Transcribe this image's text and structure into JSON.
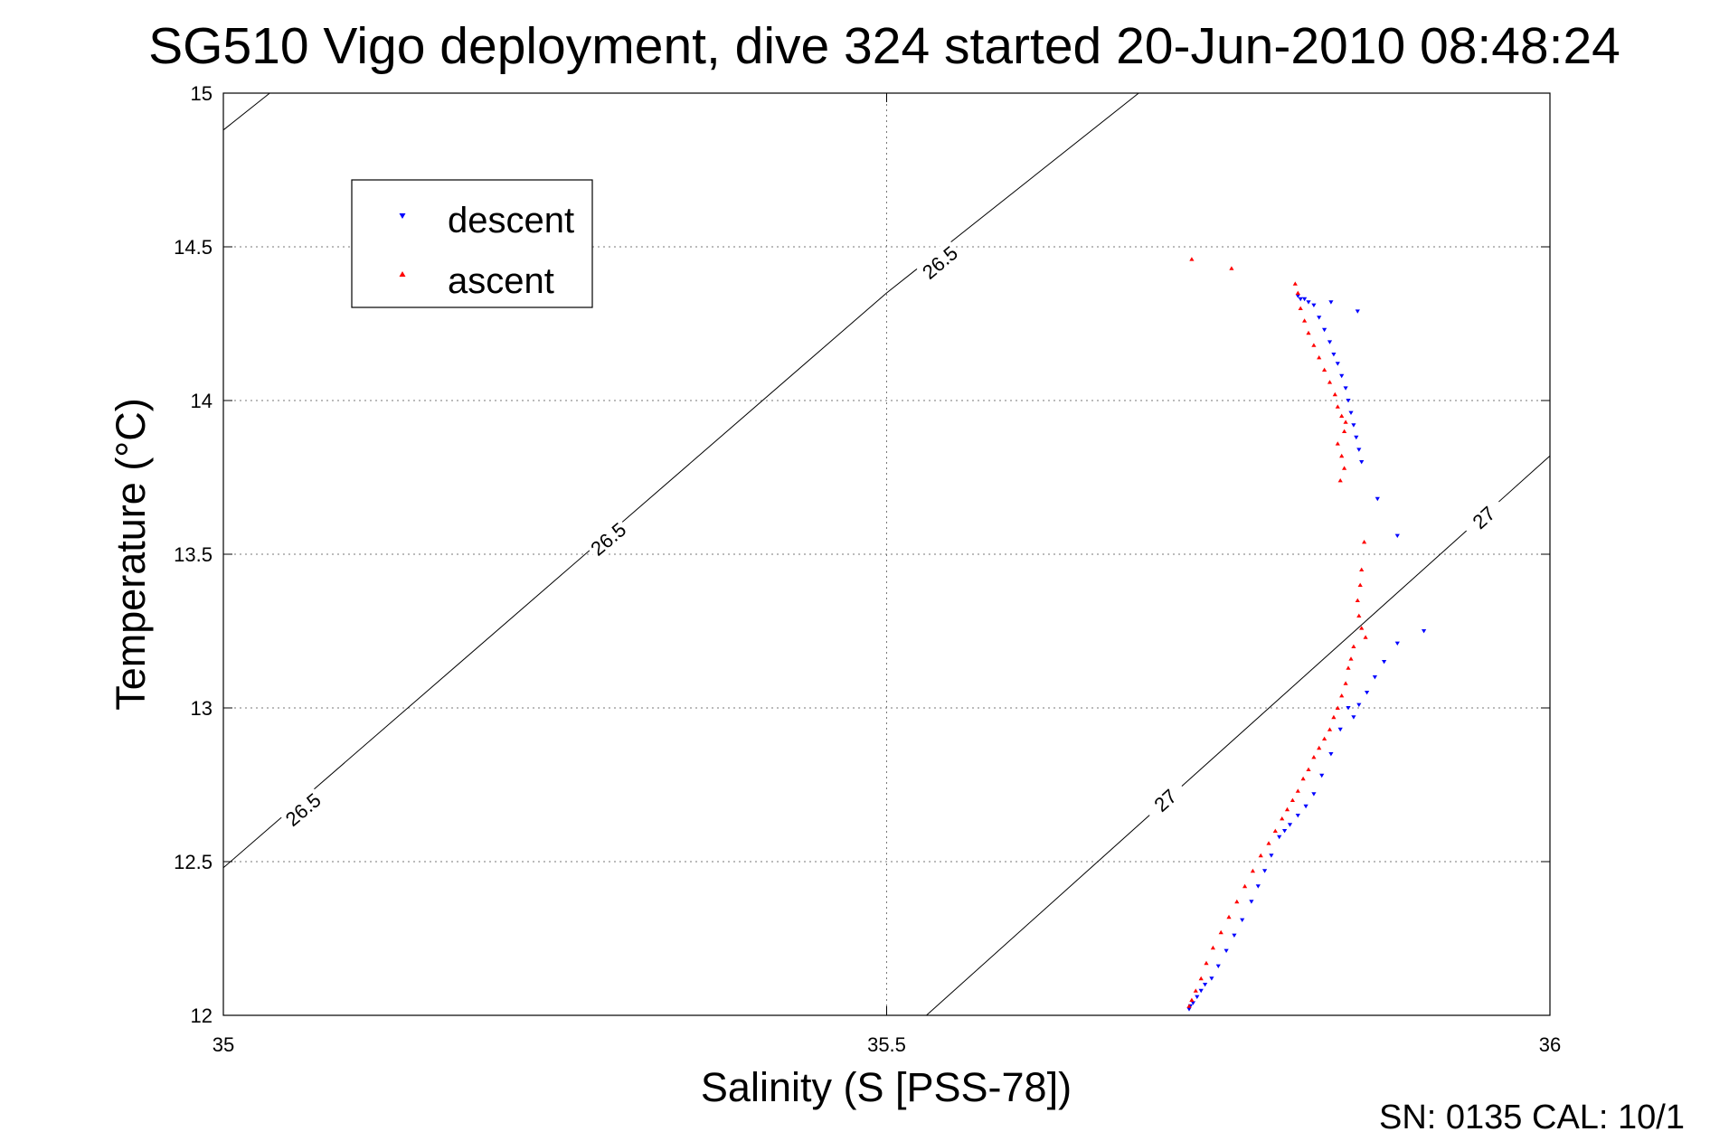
{
  "chart_data": {
    "type": "scatter",
    "title": "SG510 Vigo deployment, dive 324 started 20-Jun-2010 08:48:24",
    "xlabel": "Salinity (S [PSS-78])",
    "ylabel": "Temperature (°C)",
    "xlim": [
      35,
      36
    ],
    "ylim": [
      12,
      15
    ],
    "xticks": [
      35,
      35.5,
      36
    ],
    "xtick_labels": [
      "35",
      "35.5",
      "36"
    ],
    "yticks": [
      12,
      12.5,
      13,
      13.5,
      14,
      14.5,
      15
    ],
    "ytick_labels": [
      "12",
      "12.5",
      "13",
      "13.5",
      "14",
      "14.5",
      "15"
    ],
    "grid": true,
    "legend_position": "top-left",
    "footer": "SN: 0135  CAL: 10/1",
    "isopycnals": [
      {
        "label": "26.5",
        "points": [
          [
            35.0,
            12.48
          ],
          [
            35.5,
            14.35
          ],
          [
            35.69,
            15.0
          ]
        ],
        "label_positions": [
          [
            35.06,
            12.67
          ],
          [
            35.29,
            13.55
          ],
          [
            35.54,
            14.45
          ]
        ]
      },
      {
        "label": "26.5",
        "points": [
          [
            35.0,
            14.88
          ],
          [
            35.035,
            15.0
          ]
        ]
      },
      {
        "label": "27",
        "points": [
          [
            35.53,
            12.0
          ],
          [
            36.0,
            13.82
          ]
        ],
        "label_positions": [
          [
            35.71,
            12.7
          ],
          [
            35.95,
            13.62
          ]
        ]
      }
    ],
    "series": [
      {
        "name": "descent",
        "color": "#0000ff",
        "marker": "triangle-down",
        "points": [
          [
            35.81,
            14.34
          ],
          [
            35.812,
            14.33
          ],
          [
            35.815,
            14.33
          ],
          [
            35.818,
            14.32
          ],
          [
            35.822,
            14.31
          ],
          [
            35.826,
            14.27
          ],
          [
            35.83,
            14.23
          ],
          [
            35.834,
            14.19
          ],
          [
            35.837,
            14.15
          ],
          [
            35.84,
            14.12
          ],
          [
            35.843,
            14.08
          ],
          [
            35.846,
            14.04
          ],
          [
            35.848,
            14.0
          ],
          [
            35.85,
            13.96
          ],
          [
            35.852,
            13.92
          ],
          [
            35.854,
            13.88
          ],
          [
            35.856,
            13.84
          ],
          [
            35.858,
            13.8
          ],
          [
            35.835,
            14.32
          ],
          [
            35.855,
            14.29
          ],
          [
            35.87,
            13.68
          ],
          [
            35.885,
            13.56
          ],
          [
            35.905,
            13.25
          ],
          [
            35.885,
            13.21
          ],
          [
            35.875,
            13.15
          ],
          [
            35.868,
            13.1
          ],
          [
            35.862,
            13.05
          ],
          [
            35.856,
            13.01
          ],
          [
            35.852,
            12.97
          ],
          [
            35.848,
            13.0
          ],
          [
            35.842,
            12.93
          ],
          [
            35.835,
            12.85
          ],
          [
            35.828,
            12.78
          ],
          [
            35.822,
            12.72
          ],
          [
            35.816,
            12.68
          ],
          [
            35.81,
            12.65
          ],
          [
            35.804,
            12.62
          ],
          [
            35.8,
            12.6
          ],
          [
            35.796,
            12.58
          ],
          [
            35.79,
            12.52
          ],
          [
            35.785,
            12.47
          ],
          [
            35.78,
            12.42
          ],
          [
            35.775,
            12.37
          ],
          [
            35.768,
            12.31
          ],
          [
            35.762,
            12.26
          ],
          [
            35.756,
            12.21
          ],
          [
            35.75,
            12.16
          ],
          [
            35.745,
            12.12
          ],
          [
            35.74,
            12.1
          ],
          [
            35.737,
            12.08
          ],
          [
            35.734,
            12.06
          ],
          [
            35.731,
            12.04
          ],
          [
            35.729,
            12.03
          ],
          [
            35.728,
            12.02
          ]
        ]
      },
      {
        "name": "ascent",
        "color": "#ff0000",
        "marker": "triangle-up",
        "points": [
          [
            35.73,
            14.46
          ],
          [
            35.76,
            14.43
          ],
          [
            35.808,
            14.38
          ],
          [
            35.81,
            14.35
          ],
          [
            35.812,
            14.3
          ],
          [
            35.815,
            14.26
          ],
          [
            35.818,
            14.22
          ],
          [
            35.822,
            14.18
          ],
          [
            35.826,
            14.14
          ],
          [
            35.83,
            14.1
          ],
          [
            35.834,
            14.06
          ],
          [
            35.838,
            14.02
          ],
          [
            35.84,
            13.98
          ],
          [
            35.843,
            13.95
          ],
          [
            35.845,
            13.9
          ],
          [
            35.84,
            13.86
          ],
          [
            35.843,
            13.82
          ],
          [
            35.845,
            13.78
          ],
          [
            35.842,
            13.74
          ],
          [
            35.846,
            13.93
          ],
          [
            35.86,
            13.54
          ],
          [
            35.858,
            13.45
          ],
          [
            35.857,
            13.4
          ],
          [
            35.855,
            13.35
          ],
          [
            35.856,
            13.3
          ],
          [
            35.858,
            13.26
          ],
          [
            35.861,
            13.23
          ],
          [
            35.852,
            13.2
          ],
          [
            35.85,
            13.16
          ],
          [
            35.848,
            13.13
          ],
          [
            35.846,
            13.08
          ],
          [
            35.843,
            13.04
          ],
          [
            35.84,
            13.0
          ],
          [
            35.837,
            12.97
          ],
          [
            35.834,
            12.93
          ],
          [
            35.83,
            12.9
          ],
          [
            35.826,
            12.87
          ],
          [
            35.822,
            12.84
          ],
          [
            35.818,
            12.8
          ],
          [
            35.814,
            12.77
          ],
          [
            35.81,
            12.73
          ],
          [
            35.806,
            12.7
          ],
          [
            35.802,
            12.67
          ],
          [
            35.798,
            12.64
          ],
          [
            35.793,
            12.6
          ],
          [
            35.788,
            12.56
          ],
          [
            35.782,
            12.52
          ],
          [
            35.776,
            12.47
          ],
          [
            35.77,
            12.42
          ],
          [
            35.764,
            12.37
          ],
          [
            35.758,
            12.32
          ],
          [
            35.752,
            12.27
          ],
          [
            35.746,
            12.22
          ],
          [
            35.741,
            12.17
          ],
          [
            35.737,
            12.12
          ],
          [
            35.733,
            12.08
          ],
          [
            35.73,
            12.05
          ],
          [
            35.728,
            12.03
          ]
        ]
      }
    ]
  }
}
